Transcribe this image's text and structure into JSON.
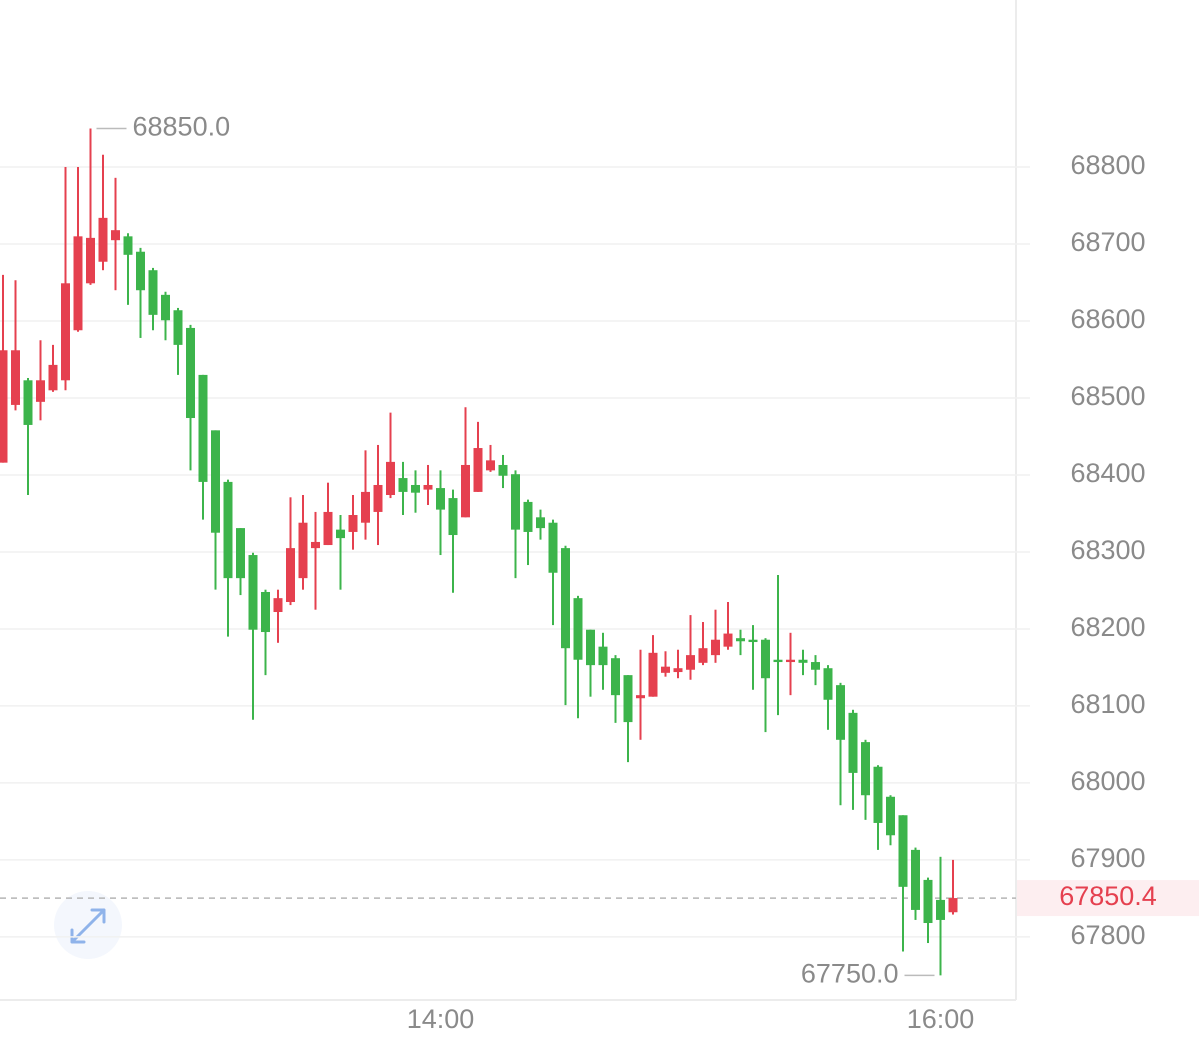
{
  "chart_data": {
    "type": "candlestick",
    "categories": [
      null,
      null,
      null,
      null,
      null,
      null,
      null,
      null,
      null,
      null,
      null,
      null,
      null,
      null,
      null,
      null,
      null,
      null,
      null,
      null,
      null,
      null,
      null,
      null,
      null,
      null,
      null,
      null,
      null,
      null,
      null,
      null,
      null,
      null,
      null,
      "14:00",
      null,
      null,
      null,
      null,
      null,
      null,
      null,
      null,
      null,
      null,
      null,
      null,
      null,
      null,
      null,
      null,
      null,
      null,
      null,
      null,
      null,
      null,
      null,
      null,
      null,
      null,
      null,
      null,
      null,
      null,
      null,
      null,
      null,
      null,
      null,
      null,
      null,
      null,
      null,
      "16:00",
      null
    ],
    "open": [
      68416,
      68491,
      68523,
      68495,
      68510,
      68523,
      68588,
      68649,
      68677,
      68705,
      68710,
      68690,
      68666,
      68634,
      68614,
      68591,
      68530,
      68458,
      68391,
      68331,
      68296,
      68248,
      68222,
      68235,
      68266,
      68305,
      68309,
      68329,
      68326,
      68338,
      68352,
      68374,
      68396,
      68387,
      68381,
      68383,
      68370,
      68345,
      68378,
      68406,
      68413,
      68401,
      68365,
      68345,
      68338,
      68305,
      68240,
      68199,
      68177,
      68162,
      68140,
      68110,
      68112,
      68143,
      68144,
      68147,
      68156,
      68166,
      68177,
      68188,
      68186,
      68186,
      68160,
      68157,
      68160,
      68157,
      68149,
      68127,
      68091,
      68053,
      68021,
      67982,
      67958,
      67913,
      67874,
      67848,
      67832
    ],
    "high": [
      68660,
      68653,
      68526,
      68575,
      68569,
      68800,
      68800,
      68850,
      68816,
      68786,
      68714,
      68695,
      68669,
      68638,
      68617,
      68595,
      68530,
      68458,
      68394,
      68331,
      68299,
      68251,
      68251,
      68371,
      68374,
      68352,
      68390,
      68348,
      68374,
      68432,
      68439,
      68481,
      68417,
      68406,
      68413,
      68406,
      68381,
      68488,
      68469,
      68439,
      68426,
      68406,
      68368,
      68355,
      68342,
      68308,
      68243,
      68199,
      68195,
      68166,
      68140,
      68173,
      68192,
      68171,
      68173,
      68218,
      68209,
      68225,
      68235,
      68199,
      68205,
      68188,
      68270,
      68195,
      68173,
      68166,
      68153,
      68130,
      68095,
      68056,
      68023,
      67984,
      67958,
      67916,
      67877,
      67904,
      67900
    ],
    "low": [
      68416,
      68484,
      68374,
      68471,
      68508,
      68510,
      68586,
      68647,
      68666,
      68640,
      68621,
      68578,
      68588,
      68575,
      68530,
      68406,
      68342,
      68251,
      68190,
      68244,
      68082,
      68140,
      68182,
      68231,
      68251,
      68225,
      68309,
      68251,
      68303,
      68316,
      68309,
      68370,
      68348,
      68351,
      68361,
      68296,
      68247,
      68345,
      68378,
      68404,
      68383,
      68266,
      68283,
      68316,
      68205,
      68101,
      68084,
      68112,
      68121,
      68078,
      68027,
      68056,
      68112,
      68138,
      68136,
      68134,
      68153,
      68156,
      68173,
      68166,
      68121,
      68066,
      68088,
      68114,
      68140,
      68127,
      68069,
      67971,
      67965,
      67952,
      67913,
      67919,
      67781,
      67822,
      67792,
      67750,
      67829
    ],
    "close": [
      68562,
      68562,
      68465,
      68523,
      68543,
      68649,
      68710,
      68708,
      68734,
      68718,
      68686,
      68640,
      68608,
      68601,
      68569,
      68474,
      68391,
      68325,
      68266,
      68266,
      68199,
      68196,
      68240,
      68305,
      68338,
      68313,
      68352,
      68318,
      68348,
      68378,
      68387,
      68417,
      68378,
      68377,
      68387,
      68355,
      68322,
      68413,
      68435,
      68419,
      68399,
      68329,
      68326,
      68331,
      68273,
      68175,
      68160,
      68153,
      68153,
      68114,
      68079,
      68114,
      68169,
      68151,
      68149,
      68166,
      68175,
      68186,
      68194,
      68184,
      68183,
      68136,
      68157,
      68160,
      68156,
      68147,
      68108,
      68056,
      68013,
      67984,
      67948,
      67932,
      67865,
      67835,
      67818,
      67822,
      67850.4
    ],
    "up_color": "#e5404f",
    "down_color": "#3cb44b",
    "ylim": [
      67718,
      69017
    ],
    "yticks": [
      67800,
      67900,
      68000,
      68100,
      68200,
      68300,
      68400,
      68500,
      68600,
      68700,
      68800
    ],
    "grid": true,
    "last_price": 67850.4,
    "max_label": {
      "value": 68850,
      "label": "68850.0"
    },
    "min_label": {
      "value": 67750,
      "label": "67750.0"
    }
  }
}
